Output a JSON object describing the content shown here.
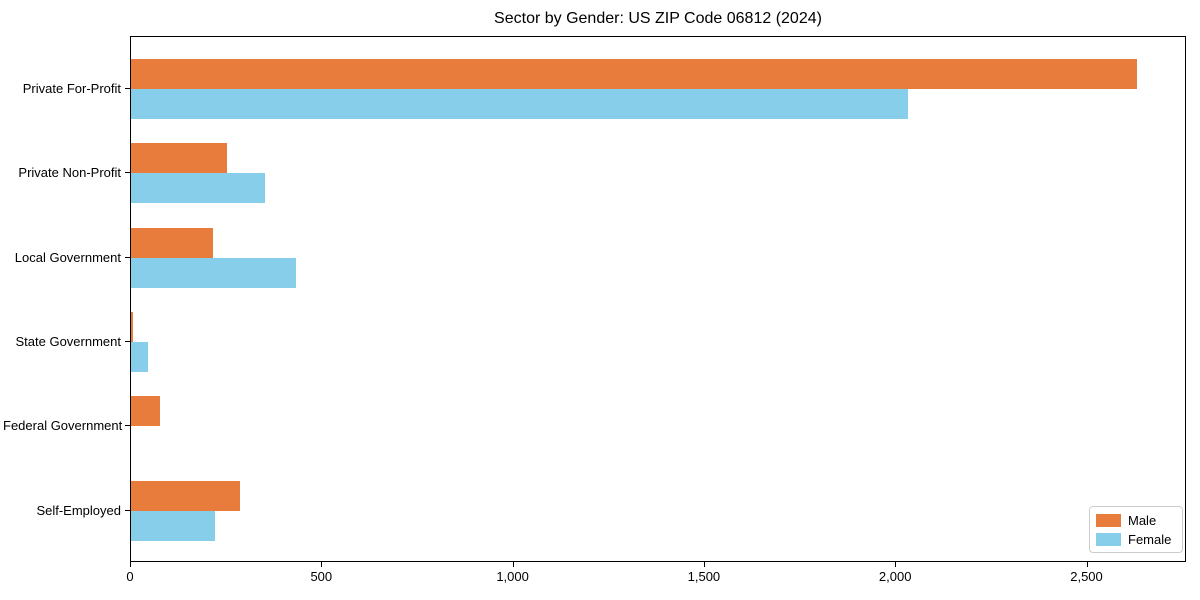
{
  "chart_data": {
    "type": "bar",
    "orientation": "horizontal",
    "title": "Sector by Gender: US ZIP Code 06812 (2024)",
    "categories": [
      "Private For-Profit",
      "Private Non-Profit",
      "Local Government",
      "State Government",
      "Federal Government",
      "Self-Employed"
    ],
    "series": [
      {
        "name": "Male",
        "color": "#e87c3d",
        "values": [
          2630,
          250,
          215,
          4,
          76,
          285
        ]
      },
      {
        "name": "Female",
        "color": "#87ceeb",
        "values": [
          2030,
          350,
          430,
          43,
          0,
          220
        ]
      }
    ],
    "xlabel": "",
    "ylabel": "",
    "xlim": [
      0,
      2760
    ],
    "xticks": [
      0,
      500,
      1000,
      1500,
      2000,
      2500
    ],
    "xtick_labels": [
      "0",
      "500",
      "1,000",
      "1,500",
      "2,000",
      "2,500"
    ],
    "grid": false,
    "legend_position": "lower right"
  }
}
